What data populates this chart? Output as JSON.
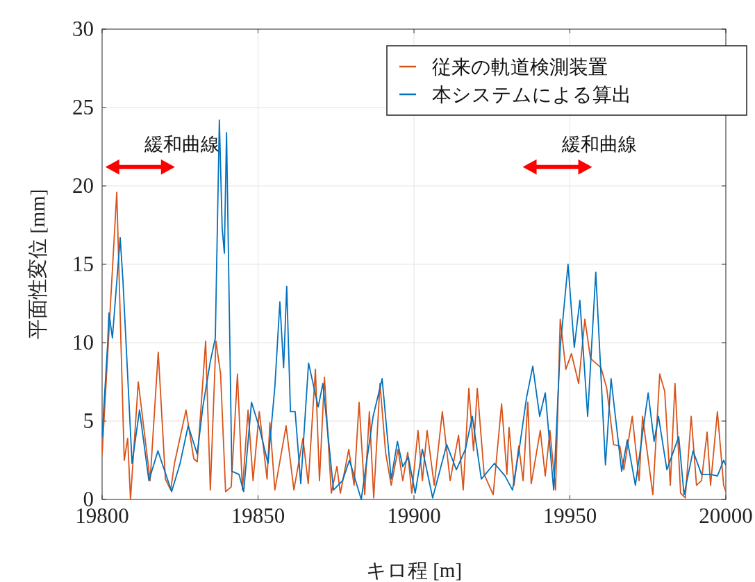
{
  "chart_data": {
    "type": "line",
    "xlabel": "キロ程 [m]",
    "ylabel": "平面性変位 [mm]",
    "xlim": [
      19800,
      20000
    ],
    "xticks": [
      19800,
      19850,
      19900,
      19950,
      20000
    ],
    "ylim": [
      0,
      30
    ],
    "yticks": [
      0,
      5,
      10,
      15,
      20,
      25,
      30
    ],
    "grid": true,
    "legend": "top right",
    "marker": "none",
    "line_style": "solid",
    "annotations": [
      "緩和曲線",
      "緩和曲線"
    ],
    "series": [
      {
        "name": "従来の軌道検測装置",
        "color": "#d95319",
        "x": [
          19800,
          19804.7,
          19807.1,
          19808.2,
          19809.1,
          19811.6,
          19815.4,
          19818,
          19820.3,
          19822,
          19823.2,
          19826.9,
          19829.4,
          19830.5,
          19833.2,
          19834.7,
          19836.5,
          19838,
          19839.6,
          19841.4,
          19843.4,
          19845,
          19846.8,
          19848.4,
          19850.4,
          19852.9,
          19853.8,
          19855.4,
          19859,
          19861.5,
          19864.4,
          19866.1,
          19868.4,
          19869.7,
          19871.3,
          19873.5,
          19875.3,
          19876.4,
          19879.1,
          19880.8,
          19882.4,
          19884.2,
          19885.7,
          19887.1,
          19889.1,
          19890.9,
          19892.7,
          19894.9,
          19896.4,
          19898,
          19899.3,
          19901.3,
          19902.7,
          19904.2,
          19906.5,
          19909.1,
          19911.6,
          19914.3,
          19915.8,
          19917.6,
          19919.1,
          19920.3,
          19922.5,
          19925.4,
          19928.1,
          19929.8,
          19930.5,
          19932.1,
          19933.6,
          19935,
          19936.5,
          19937.6,
          19940.5,
          19942.1,
          19943.6,
          19945.4,
          19946.9,
          19948.7,
          19950.5,
          19952.8,
          19954.8,
          19956.6,
          19957.7,
          19960,
          19961.8,
          19964,
          19966,
          19967.3,
          19970,
          19972.2,
          19973.3,
          19976.6,
          19978.8,
          19980.4,
          19982.2,
          19983.7,
          19985.5,
          19987,
          19988.9,
          19990.6,
          19992.2,
          19994,
          19995.1,
          19997.3,
          19999.3,
          20000
        ],
        "values": [
          2.9,
          19.6,
          2.5,
          3.9,
          0,
          7.5,
          1.2,
          9.4,
          1.3,
          0.6,
          2.3,
          5.7,
          2.6,
          2.4,
          10.1,
          0.6,
          10.1,
          8,
          0.5,
          0.8,
          8,
          0.6,
          5.7,
          1.2,
          5.6,
          1.3,
          4.9,
          0.6,
          4.7,
          0.6,
          3.9,
          1,
          8.3,
          1.2,
          7.8,
          0.4,
          2.1,
          0.4,
          3.2,
          0.9,
          6.2,
          0.3,
          5.6,
          0.1,
          7.4,
          3,
          0.9,
          3.2,
          1.2,
          3,
          0.4,
          4.4,
          1.2,
          4.4,
          0.9,
          5.6,
          1.2,
          4.1,
          0.6,
          7.1,
          3.1,
          7.1,
          1.6,
          0.3,
          6.1,
          1.6,
          4.6,
          0.9,
          3.4,
          1.2,
          6.2,
          1,
          4.4,
          1.5,
          4.4,
          0.6,
          11.5,
          8.3,
          9.3,
          7.4,
          11.5,
          9,
          8.8,
          8.4,
          7.1,
          3.5,
          3.4,
          1.9,
          5.3,
          1.2,
          5.3,
          0.3,
          8,
          6.9,
          0.9,
          7.4,
          0.4,
          0.1,
          5.3,
          0.9,
          1.2,
          4.3,
          0.9,
          5.6,
          0.9,
          0.5
        ]
      },
      {
        "name": "本システムによる算出",
        "color": "#0072bd",
        "x": [
          19800,
          19801.8,
          19802.2,
          19803.3,
          19805.8,
          19806.7,
          19807.6,
          19809.6,
          19812,
          19815,
          19817.9,
          19822.3,
          19825,
          19827.6,
          19830.5,
          19832.3,
          19834.7,
          19836.3,
          19837.6,
          19838.5,
          19839.2,
          19839.9,
          19841.6,
          19843.9,
          19845.4,
          19847.9,
          19850.4,
          19853.2,
          19855.4,
          19857,
          19858.2,
          19859.2,
          19860.4,
          19861.9,
          19863.7,
          19866.2,
          19869.3,
          19870.8,
          19874.2,
          19877.1,
          19879.3,
          19883.1,
          19886.9,
          19889.8,
          19892.7,
          19894.7,
          19896.4,
          19898.2,
          19900.4,
          19902.7,
          19906,
          19910.5,
          19913.6,
          19916.5,
          19918.7,
          19921.6,
          19925.8,
          19929.2,
          19931.6,
          19933.9,
          19936.1,
          19938.1,
          19940.3,
          19942.1,
          19944.8,
          19946.9,
          19949.4,
          19951.4,
          19953.2,
          19955.7,
          19958.3,
          19961.4,
          19963.2,
          19966.6,
          19968.4,
          19971,
          19975.1,
          19977,
          19978.4,
          19981.1,
          19984.9,
          19986.6,
          19989.5,
          19992.2,
          19995.1,
          19997.3,
          19999.3,
          20000
        ],
        "values": [
          4,
          10,
          11.9,
          10.3,
          16.7,
          13.9,
          10.3,
          2.3,
          5.7,
          1.2,
          3.1,
          0.5,
          2.3,
          4.7,
          2.9,
          5.9,
          8.8,
          10.3,
          24.2,
          17.3,
          15.7,
          23.4,
          1.8,
          1.6,
          0.5,
          6.2,
          4.6,
          2.3,
          7.2,
          12.6,
          8.4,
          13.6,
          5.6,
          5.6,
          1,
          8.7,
          5.9,
          7.4,
          0.6,
          1.2,
          2.5,
          0,
          5.3,
          7.7,
          1.3,
          3.7,
          2.1,
          2.7,
          0.4,
          3.2,
          0.1,
          3.5,
          1.9,
          3.2,
          5.3,
          1.3,
          2.3,
          1.5,
          0.6,
          3.4,
          6.5,
          8.5,
          5.3,
          6.8,
          0.6,
          9.7,
          15,
          9.7,
          12.7,
          5.3,
          14.5,
          2.2,
          7.7,
          1.8,
          3.8,
          0.9,
          6.8,
          3.7,
          5.3,
          1.9,
          4,
          0.3,
          3.1,
          1.6,
          1.6,
          1.5,
          2.5,
          2.2
        ]
      }
    ]
  }
}
